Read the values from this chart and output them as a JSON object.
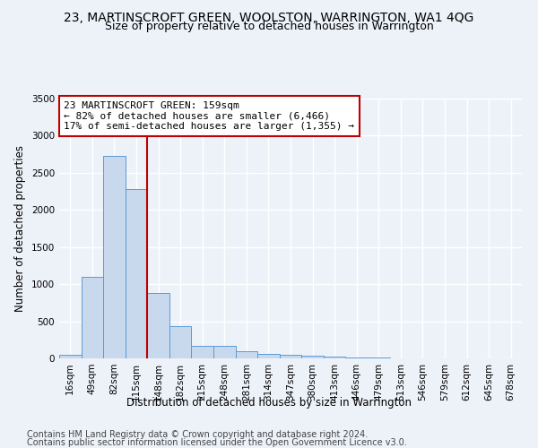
{
  "title": "23, MARTINSCROFT GREEN, WOOLSTON, WARRINGTON, WA1 4QG",
  "subtitle": "Size of property relative to detached houses in Warrington",
  "xlabel": "Distribution of detached houses by size in Warrington",
  "ylabel": "Number of detached properties",
  "categories": [
    "16sqm",
    "49sqm",
    "82sqm",
    "115sqm",
    "148sqm",
    "182sqm",
    "215sqm",
    "248sqm",
    "281sqm",
    "314sqm",
    "347sqm",
    "380sqm",
    "413sqm",
    "446sqm",
    "479sqm",
    "513sqm",
    "546sqm",
    "579sqm",
    "612sqm",
    "645sqm",
    "678sqm"
  ],
  "values": [
    50,
    1100,
    2730,
    2280,
    880,
    430,
    170,
    165,
    95,
    60,
    50,
    35,
    25,
    15,
    10,
    5,
    3,
    2,
    2,
    1,
    1
  ],
  "bar_color": "#c9d9ed",
  "bar_edge_color": "#5b9bd5",
  "vline_color": "#c00000",
  "vline_x_index": 4,
  "annotation_line1": "23 MARTINSCROFT GREEN: 159sqm",
  "annotation_line2": "← 82% of detached houses are smaller (6,466)",
  "annotation_line3": "17% of semi-detached houses are larger (1,355) →",
  "annotation_box_color": "#c00000",
  "ylim": [
    0,
    3500
  ],
  "yticks": [
    0,
    500,
    1000,
    1500,
    2000,
    2500,
    3000,
    3500
  ],
  "footer1": "Contains HM Land Registry data © Crown copyright and database right 2024.",
  "footer2": "Contains public sector information licensed under the Open Government Licence v3.0.",
  "bg_color": "#edf2f9",
  "plot_bg_color": "#edf2f9",
  "grid_color": "#ffffff",
  "title_fontsize": 10,
  "subtitle_fontsize": 9,
  "axis_label_fontsize": 8.5,
  "tick_fontsize": 7.5,
  "annotation_fontsize": 8,
  "footer_fontsize": 7
}
